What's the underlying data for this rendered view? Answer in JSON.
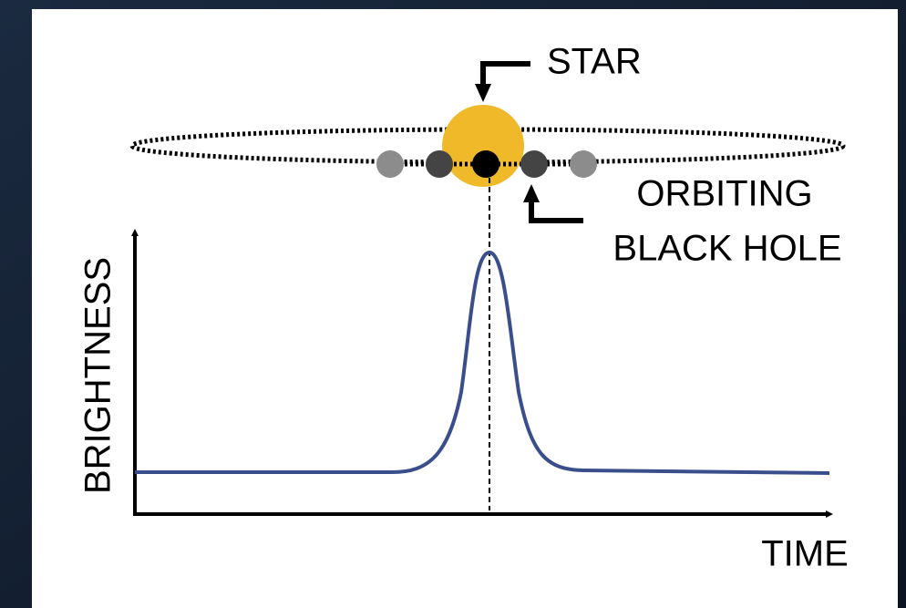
{
  "labels": {
    "star": "STAR",
    "orbiting": "ORBITING",
    "black_hole": "BLACK HOLE",
    "y_axis": "BRIGHTNESS",
    "x_axis": "TIME"
  }
}
